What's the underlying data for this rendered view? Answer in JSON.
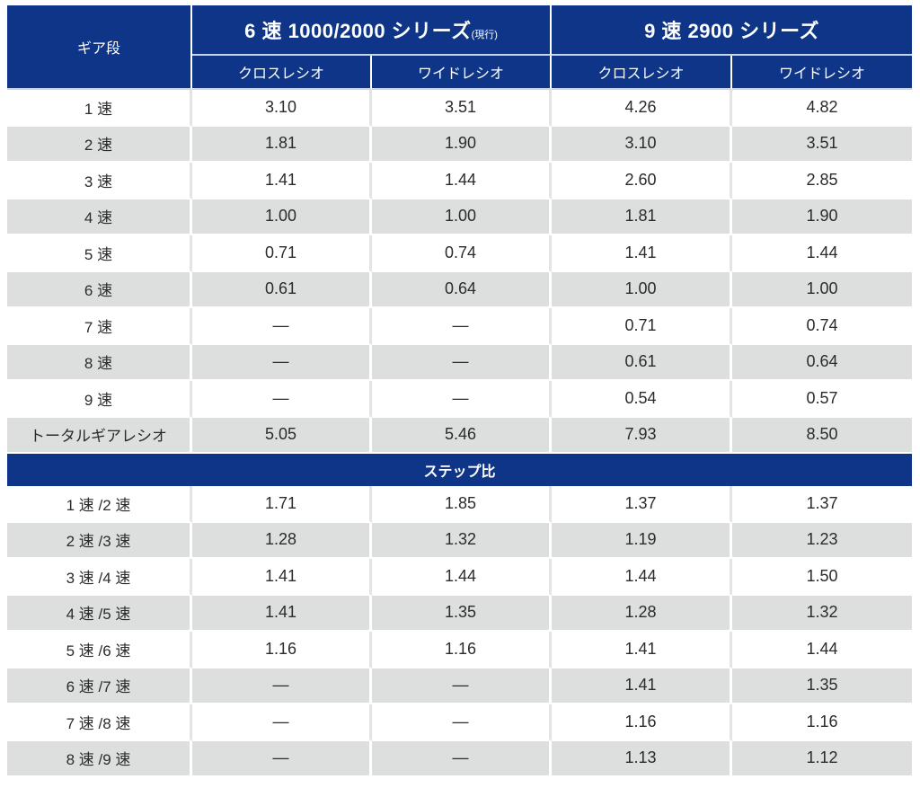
{
  "header": {
    "gear_label": "ギア段",
    "series": [
      {
        "title": "6 速 1000/2000 シリーズ",
        "note": "(現行)"
      },
      {
        "title": "9 速 2900 シリーズ",
        "note": ""
      }
    ],
    "subcolumns": [
      "クロスレシオ",
      "ワイドレシオ",
      "クロスレシオ",
      "ワイドレシオ"
    ]
  },
  "gear_rows": [
    {
      "label": "1 速",
      "values": [
        "3.10",
        "3.51",
        "4.26",
        "4.82"
      ]
    },
    {
      "label": "2 速",
      "values": [
        "1.81",
        "1.90",
        "3.10",
        "3.51"
      ]
    },
    {
      "label": "3 速",
      "values": [
        "1.41",
        "1.44",
        "2.60",
        "2.85"
      ]
    },
    {
      "label": "4 速",
      "values": [
        "1.00",
        "1.00",
        "1.81",
        "1.90"
      ]
    },
    {
      "label": "5 速",
      "values": [
        "0.71",
        "0.74",
        "1.41",
        "1.44"
      ]
    },
    {
      "label": "6 速",
      "values": [
        "0.61",
        "0.64",
        "1.00",
        "1.00"
      ]
    },
    {
      "label": "7 速",
      "values": [
        "—",
        "—",
        "0.71",
        "0.74"
      ]
    },
    {
      "label": "8 速",
      "values": [
        "—",
        "—",
        "0.61",
        "0.64"
      ]
    },
    {
      "label": "9 速",
      "values": [
        "—",
        "—",
        "0.54",
        "0.57"
      ]
    },
    {
      "label": "トータルギアレシオ",
      "values": [
        "5.05",
        "5.46",
        "7.93",
        "8.50"
      ]
    }
  ],
  "step_section_title": "ステップ比",
  "step_rows": [
    {
      "label": "1 速 /2 速",
      "values": [
        "1.71",
        "1.85",
        "1.37",
        "1.37"
      ]
    },
    {
      "label": "2 速 /3 速",
      "values": [
        "1.28",
        "1.32",
        "1.19",
        "1.23"
      ]
    },
    {
      "label": "3 速 /4 速",
      "values": [
        "1.41",
        "1.44",
        "1.44",
        "1.50"
      ]
    },
    {
      "label": "4 速 /5 速",
      "values": [
        "1.41",
        "1.35",
        "1.28",
        "1.32"
      ]
    },
    {
      "label": "5 速 /6 速",
      "values": [
        "1.16",
        "1.16",
        "1.41",
        "1.44"
      ]
    },
    {
      "label": "6 速 /7 速",
      "values": [
        "—",
        "—",
        "1.41",
        "1.35"
      ]
    },
    {
      "label": "7 速 /8 速",
      "values": [
        "—",
        "—",
        "1.16",
        "1.16"
      ]
    },
    {
      "label": "8 速 /9 速",
      "values": [
        "—",
        "—",
        "1.13",
        "1.12"
      ]
    }
  ],
  "colors": {
    "header_blue": "#0e3588",
    "row_grey": "#dddede",
    "row_white": "#ffffff"
  }
}
